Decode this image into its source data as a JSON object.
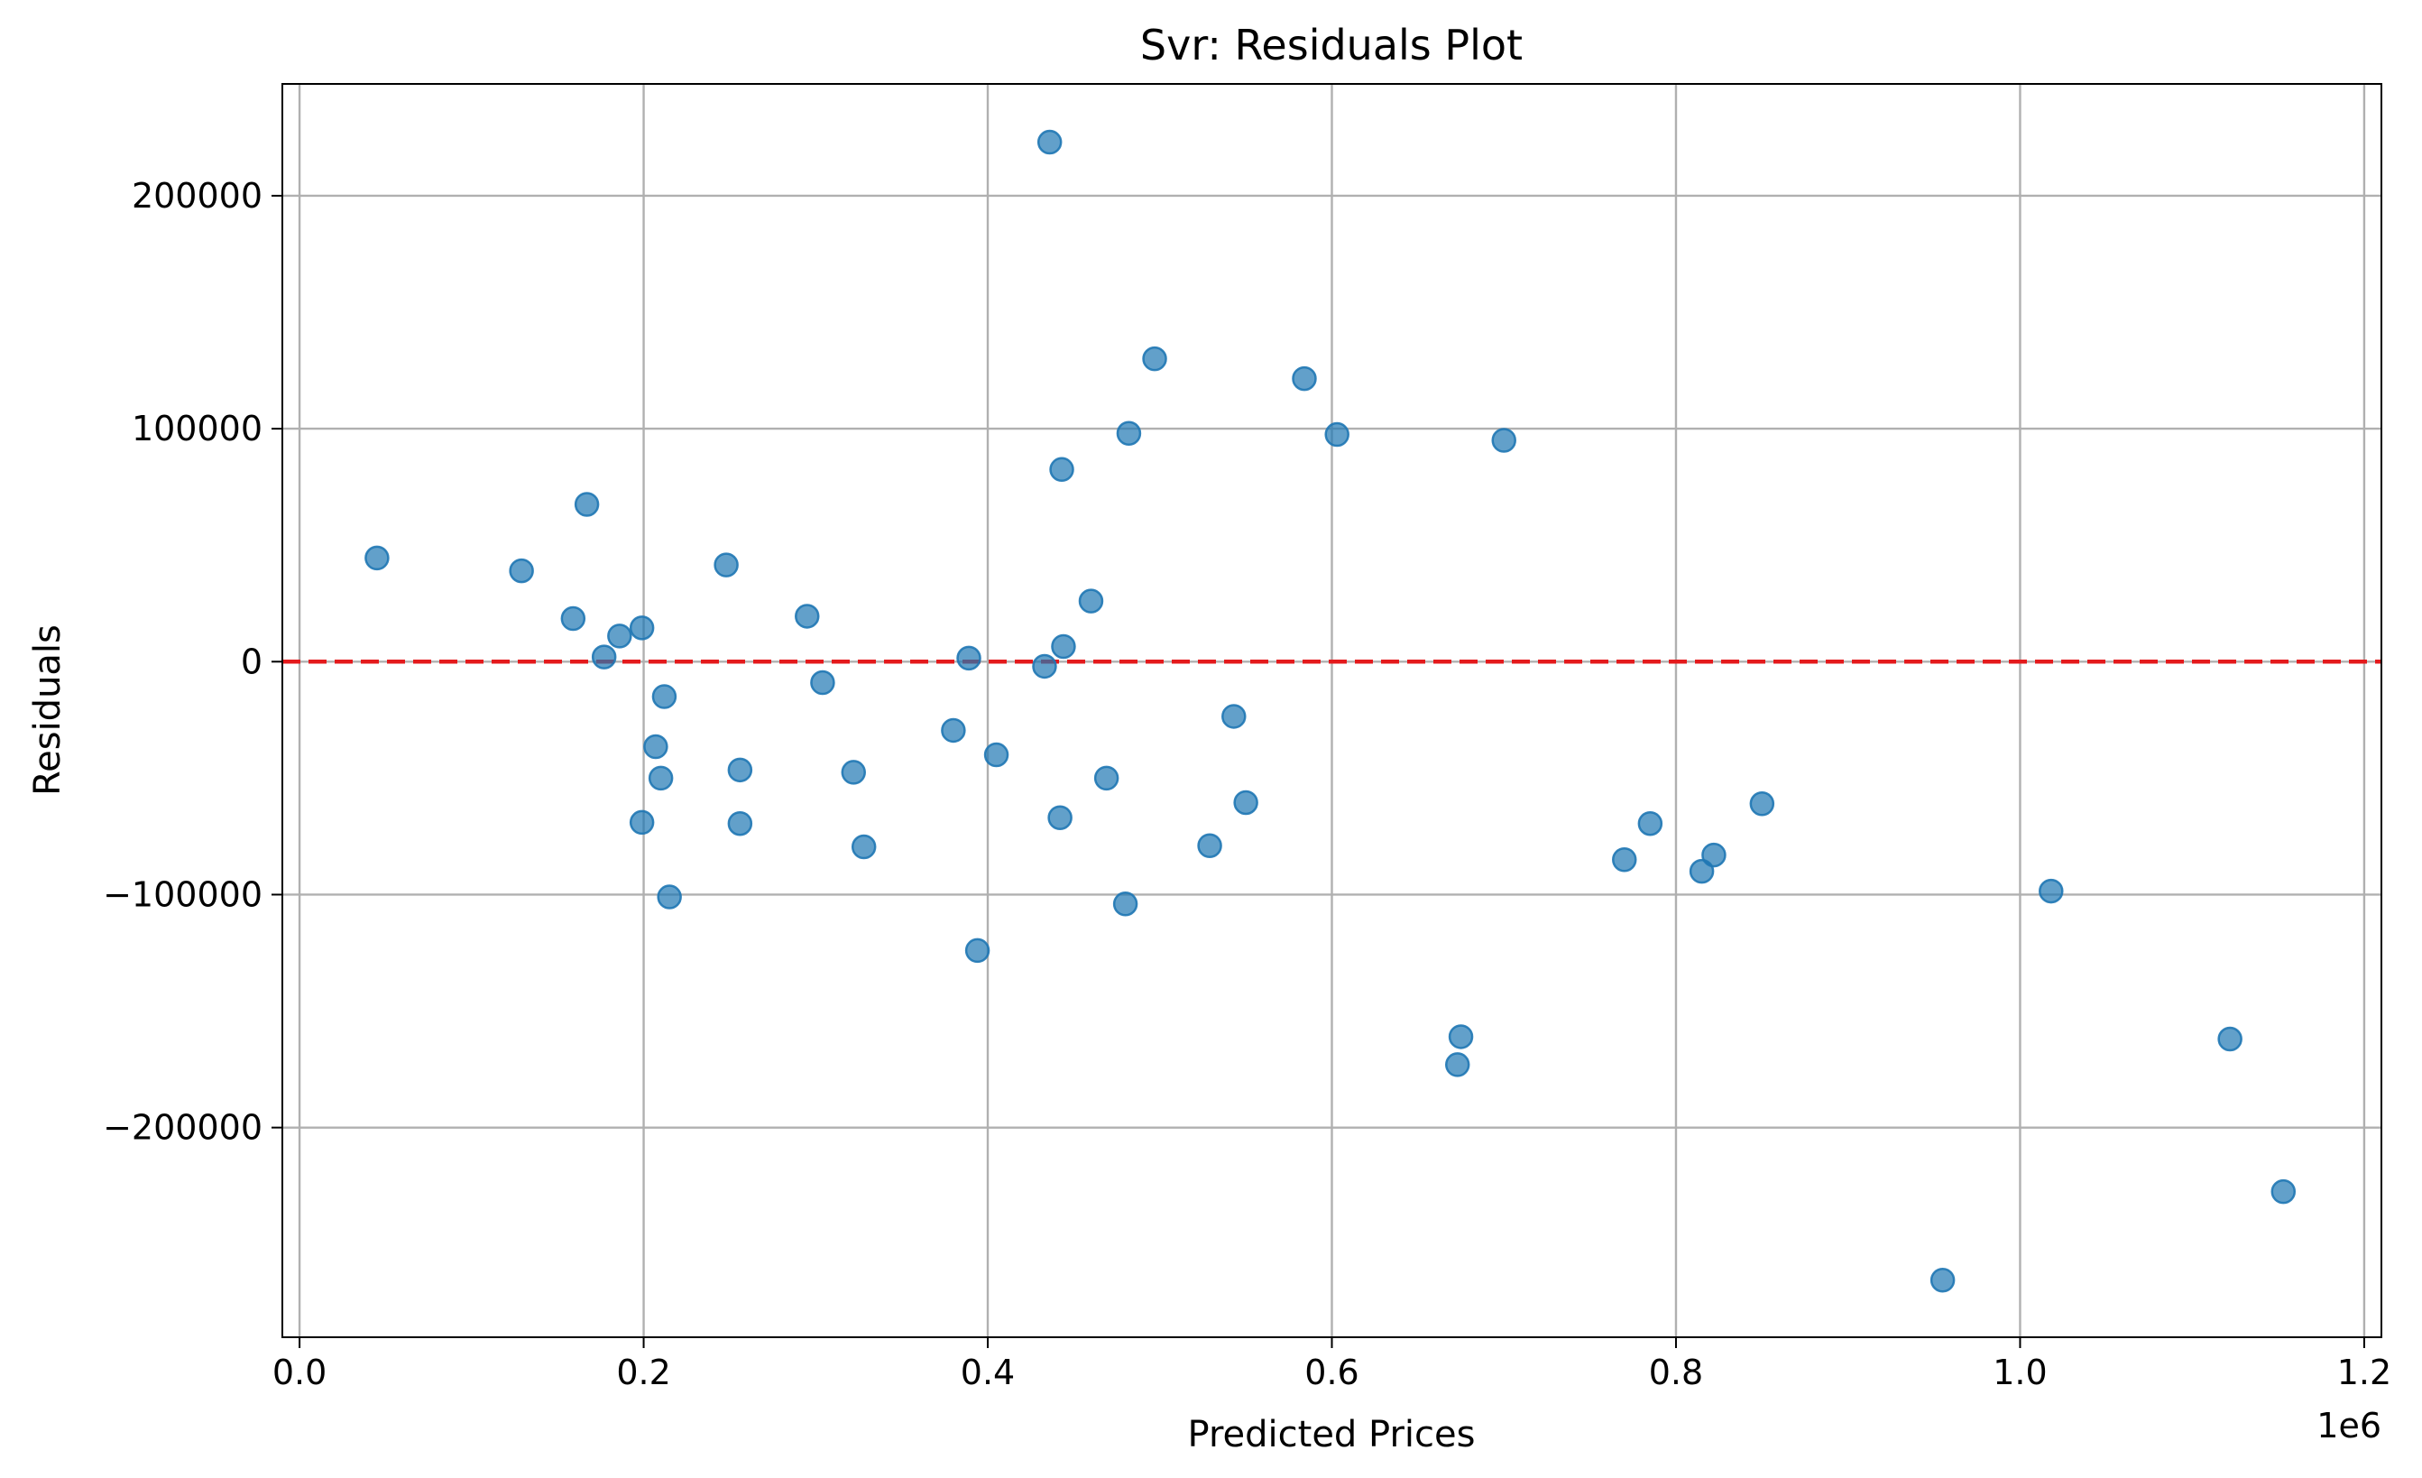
{
  "chart_data": {
    "type": "scatter",
    "title": "Svr: Residuals Plot",
    "xlabel": "Predicted Prices",
    "ylabel": "Residuals",
    "x_offset_label": "1e6",
    "xlim": [
      -0.01,
      1.21
    ],
    "ylim": [
      -290000,
      248000
    ],
    "x_ticks": [
      0.0,
      0.2,
      0.4,
      0.6,
      0.8,
      1.0,
      1.2
    ],
    "x_tick_labels": [
      "0.0",
      "0.2",
      "0.4",
      "0.6",
      "0.8",
      "1.0",
      "1.2"
    ],
    "y_ticks": [
      -200000,
      -100000,
      0,
      100000,
      200000
    ],
    "y_tick_labels": [
      "−200000",
      "−100000",
      "0",
      "100000",
      "200000"
    ],
    "grid": true,
    "reference_line": {
      "y": 0,
      "color": "#e41a1c",
      "style": "dashed"
    },
    "point_color": "#1f77b4",
    "point_alpha": 0.7,
    "points": [
      {
        "x": 0.045,
        "y": 44500
      },
      {
        "x": 0.129,
        "y": 39000
      },
      {
        "x": 0.159,
        "y": 18500
      },
      {
        "x": 0.167,
        "y": 67500
      },
      {
        "x": 0.177,
        "y": 2000
      },
      {
        "x": 0.186,
        "y": 11000
      },
      {
        "x": 0.199,
        "y": 14500
      },
      {
        "x": 0.199,
        "y": -69000
      },
      {
        "x": 0.207,
        "y": -36500
      },
      {
        "x": 0.21,
        "y": -50000
      },
      {
        "x": 0.212,
        "y": -15000
      },
      {
        "x": 0.215,
        "y": -101000
      },
      {
        "x": 0.248,
        "y": 41500
      },
      {
        "x": 0.256,
        "y": -46500
      },
      {
        "x": 0.256,
        "y": -69500
      },
      {
        "x": 0.295,
        "y": 19500
      },
      {
        "x": 0.304,
        "y": -9000
      },
      {
        "x": 0.322,
        "y": -47500
      },
      {
        "x": 0.328,
        "y": -79500
      },
      {
        "x": 0.38,
        "y": -29500
      },
      {
        "x": 0.389,
        "y": 1500
      },
      {
        "x": 0.394,
        "y": -124000
      },
      {
        "x": 0.405,
        "y": -40000
      },
      {
        "x": 0.433,
        "y": -2000
      },
      {
        "x": 0.436,
        "y": 223000
      },
      {
        "x": 0.442,
        "y": -67000
      },
      {
        "x": 0.443,
        "y": 82500
      },
      {
        "x": 0.444,
        "y": 6500
      },
      {
        "x": 0.46,
        "y": 26000
      },
      {
        "x": 0.469,
        "y": -50000
      },
      {
        "x": 0.48,
        "y": -104000
      },
      {
        "x": 0.482,
        "y": 98000
      },
      {
        "x": 0.497,
        "y": 130000
      },
      {
        "x": 0.529,
        "y": -79000
      },
      {
        "x": 0.543,
        "y": -23500
      },
      {
        "x": 0.55,
        "y": -60500
      },
      {
        "x": 0.584,
        "y": 121500
      },
      {
        "x": 0.603,
        "y": 97500
      },
      {
        "x": 0.673,
        "y": -173000
      },
      {
        "x": 0.675,
        "y": -161000
      },
      {
        "x": 0.7,
        "y": 95000
      },
      {
        "x": 0.77,
        "y": -85000
      },
      {
        "x": 0.785,
        "y": -69500
      },
      {
        "x": 0.815,
        "y": -90000
      },
      {
        "x": 0.822,
        "y": -83000
      },
      {
        "x": 0.85,
        "y": -61000
      },
      {
        "x": 0.955,
        "y": -265500
      },
      {
        "x": 1.018,
        "y": -98500
      },
      {
        "x": 1.122,
        "y": -162000
      },
      {
        "x": 1.153,
        "y": -227500
      }
    ]
  }
}
